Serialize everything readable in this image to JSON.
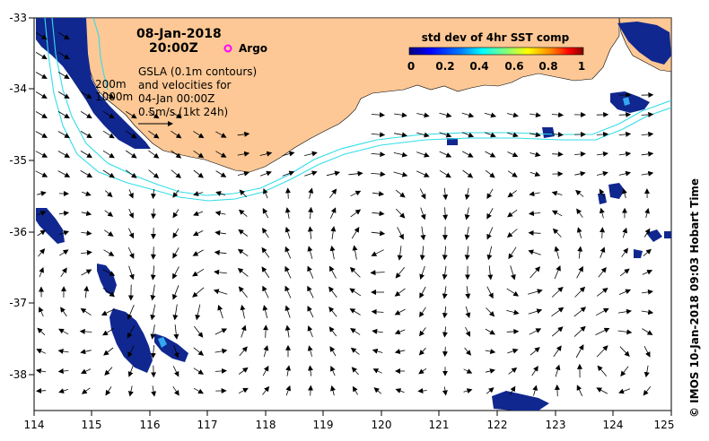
{
  "header": {
    "date": "08-Jan-2018",
    "time": "20:00Z"
  },
  "legend": {
    "argo_label": "Argo",
    "colorbar_title": "std dev of 4hr SST comp",
    "colorbar_ticks": [
      "0",
      "0.2",
      "0.4",
      "0.6",
      "0.8",
      "1"
    ],
    "colorbar_colors": [
      "#00007f",
      "#0000ff",
      "#007fff",
      "#00ffff",
      "#7fff7f",
      "#ffff00",
      "#ff7f00",
      "#ff0000",
      "#7f0000"
    ]
  },
  "annotations": {
    "iso_200": "200m",
    "iso_1000": "1000m",
    "gsla_lines": [
      "GSLA (0.1m contours)",
      "and velocities for",
      "04-Jan 00:00Z",
      "0.5m/s (1kt 24h)"
    ]
  },
  "axes": {
    "x_ticks": [
      "114",
      "115",
      "116",
      "117",
      "118",
      "119",
      "120",
      "121",
      "122",
      "123",
      "124",
      "125"
    ],
    "y_ticks": [
      "-33",
      "-34",
      "-35",
      "-36",
      "-37",
      "-38"
    ]
  },
  "credit": "© IMOS 10-Jan-2018 09:03 Hobart Time",
  "colors": {
    "land": "#fdc895",
    "sst_patch": "#10278f",
    "isobath": "#33dde8"
  }
}
